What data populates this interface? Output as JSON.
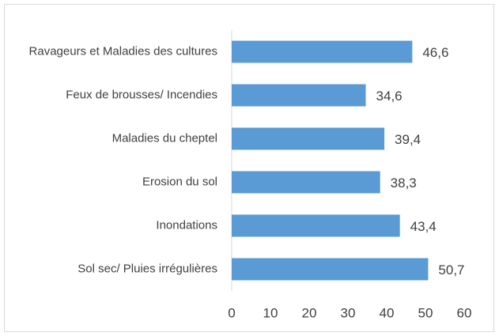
{
  "chart_data": {
    "type": "bar",
    "orientation": "horizontal",
    "categories": [
      "Ravageurs et Maladies des cultures",
      "Feux de brousses/ Incendies",
      "Maladies du cheptel",
      "Erosion du sol",
      "Inondations",
      "Sol sec/ Pluies irrégulières"
    ],
    "values": [
      46.6,
      34.6,
      39.4,
      38.3,
      43.4,
      50.7
    ],
    "value_labels": [
      "46,6",
      "34,6",
      "39,4",
      "38,3",
      "43,4",
      "50,7"
    ],
    "color": "#5b9bd5",
    "xlim": [
      0,
      60
    ],
    "xticks": [
      0,
      10,
      20,
      30,
      40,
      50,
      60
    ],
    "grid": false
  }
}
